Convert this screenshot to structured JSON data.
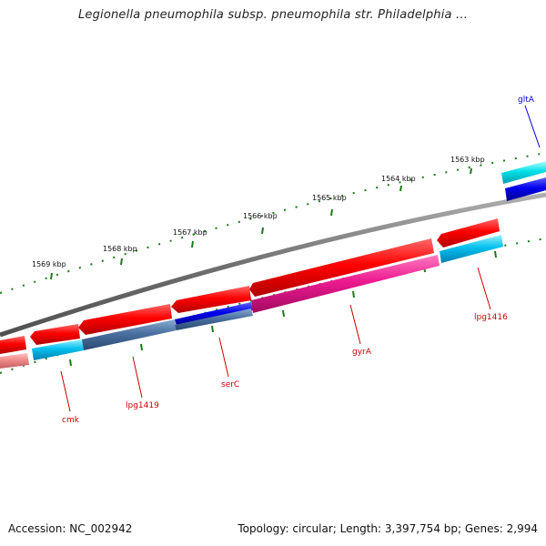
{
  "title": "Legionella pneumophila subsp. pneumophila str. Philadelphia ...",
  "footer": {
    "accession": "Accession: NC_002942",
    "topology": "Topology: circular; Length: 3,397,754 bp; Genes: 2,994"
  },
  "ticks": [
    {
      "label": "1563 kbp"
    },
    {
      "label": "1564 kbp"
    },
    {
      "label": "1565 kbp"
    },
    {
      "label": "1566 kbp"
    },
    {
      "label": "1567 kbp"
    },
    {
      "label": "1568 kbp"
    },
    {
      "label": "1569 kbp"
    }
  ],
  "gene_labels": [
    {
      "text": "gltA",
      "color": "#0000cc"
    },
    {
      "text": "lpg1416",
      "color": "#cc0000"
    },
    {
      "text": "gyrA",
      "color": "#cc0000"
    },
    {
      "text": "serC",
      "color": "#cc0000"
    },
    {
      "text": "lpg1419",
      "color": "#cc0000"
    },
    {
      "text": "cmk",
      "color": "#cc0000"
    }
  ],
  "colors": {
    "forward_cds": "#ff0000",
    "reverse_cds": "#ff0000",
    "backbone": "#7a7a7a",
    "tick": "#1a7a1a",
    "cyan_feature": "#00c8f0",
    "blue_feature": "#0000dd",
    "magenta_feature": "#ee1a90",
    "steel_feature": "#4a70a0"
  }
}
